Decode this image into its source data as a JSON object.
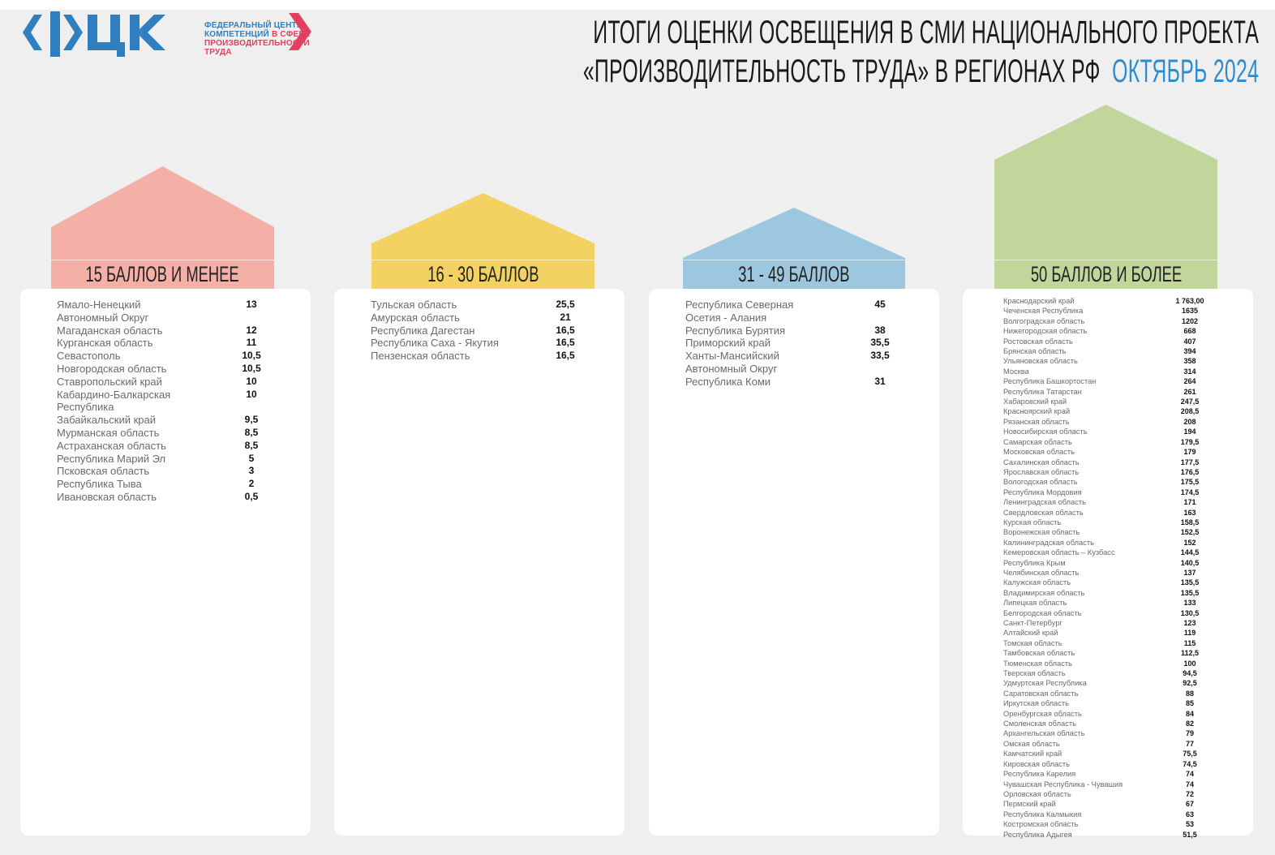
{
  "logo": {
    "mark": "ФЦК",
    "line1": "ФЕДЕРАЛЬНЫЙ ЦЕНТР",
    "line2a": "КОМПЕТЕНЦИЙ ",
    "line2b": "В СФЕРЕ",
    "line3": "ПРОИЗВОДИТЕЛЬНОСТИ",
    "line4": "ТРУДА",
    "colors": {
      "blue": "#2f7fc1",
      "red": "#e2405e"
    }
  },
  "title": {
    "line1": "ИТОГИ ОЦЕНКИ ОСВЕЩЕНИЯ В СМИ НАЦИОНАЛЬНОГО ПРОЕКТА",
    "line2": "«ПРОИЗВОДИТЕЛЬНОСТЬ ТРУДА» В РЕГИОНАХ РФ",
    "period": "ОКТЯБРЬ 2024"
  },
  "groups": [
    {
      "label": "15 БАЛЛОВ И МЕНЕЕ",
      "color": "#f4b0a6",
      "items": [
        [
          "Ямало-Ненецкий Автономный Округ",
          "13"
        ],
        [
          "Магаданская область",
          "12"
        ],
        [
          "Курганская область",
          "11"
        ],
        [
          "Севастополь",
          "10,5"
        ],
        [
          "Новгородская область",
          "10,5"
        ],
        [
          "Ставропольский край",
          "10"
        ],
        [
          "Кабардино-Балкарская Республика",
          "10"
        ],
        [
          "Забайкальский край",
          "9,5"
        ],
        [
          "Мурманская область",
          "8,5"
        ],
        [
          "Астраханская область",
          "8,5"
        ],
        [
          "Республика Марий Эл",
          "5"
        ],
        [
          "Псковская область",
          "3"
        ],
        [
          "Республика Тыва",
          "2"
        ],
        [
          "Ивановская область",
          "0,5"
        ]
      ]
    },
    {
      "label": "16 - 30 БАЛЛОВ",
      "color": "#f4d262",
      "items": [
        [
          "Тульская область",
          "25,5"
        ],
        [
          "Амурская область",
          "21"
        ],
        [
          "Республика Дагестан",
          "16,5"
        ],
        [
          "Республика Саха - Якутия",
          "16,5"
        ],
        [
          "Пензенская область",
          "16,5"
        ]
      ]
    },
    {
      "label": "31 - 49 БАЛЛОВ",
      "color": "#9dc7df",
      "items": [
        [
          "Республика Северная Осетия - Алания",
          "45"
        ],
        [
          "Республика Бурятия",
          "38"
        ],
        [
          "Приморский край",
          "35,5"
        ],
        [
          "Ханты-Мансийский Автономный Округ",
          "33,5"
        ],
        [
          "Республика Коми",
          "31"
        ]
      ]
    },
    {
      "label": "50 БАЛЛОВ И БОЛЕЕ",
      "color": "#c2d69b",
      "items": [
        [
          "Краснодарский край",
          "1 763,00"
        ],
        [
          "Чеченская Республика",
          "1635"
        ],
        [
          "Волгоградская область",
          "1202"
        ],
        [
          "Нижегородская область",
          "668"
        ],
        [
          "Ростовская область",
          "407"
        ],
        [
          "Брянская область",
          "394"
        ],
        [
          "Ульяновская область",
          "358"
        ],
        [
          "Москва",
          "314"
        ],
        [
          "Республика Башкортостан",
          "264"
        ],
        [
          "Республика Татарстан",
          "261"
        ],
        [
          "Хабаровский край",
          "247,5"
        ],
        [
          "Красноярский край",
          "208,5"
        ],
        [
          "Рязанская область",
          "208"
        ],
        [
          "Новосибирская область",
          "194"
        ],
        [
          "Самарская область",
          "179,5"
        ],
        [
          "Московская область",
          "179"
        ],
        [
          "Сахалинская область",
          "177,5"
        ],
        [
          "Ярославская область",
          "176,5"
        ],
        [
          "Вологодская область",
          "175,5"
        ],
        [
          "Республика Мордовия",
          "174,5"
        ],
        [
          "Ленинградская область",
          "171"
        ],
        [
          "Свердловская область",
          "163"
        ],
        [
          "Курская область",
          "158,5"
        ],
        [
          "Воронежская область",
          "152,5"
        ],
        [
          "Калининградская область",
          "152"
        ],
        [
          "Кемеровская область – Кузбасс",
          "144,5"
        ],
        [
          "Республика Крым",
          "140,5"
        ],
        [
          "Челябинская область",
          "137"
        ],
        [
          "Калужская область",
          "135,5"
        ],
        [
          "Владимирская область",
          "135,5"
        ],
        [
          "Липецкая область",
          "133"
        ],
        [
          "Белгородская область",
          "130,5"
        ],
        [
          "Санкт-Петербург",
          "123"
        ],
        [
          "Алтайский край",
          "119"
        ],
        [
          "Томская область",
          "115"
        ],
        [
          "Тамбовская область",
          "112,5"
        ],
        [
          "Тюменская область",
          "100"
        ],
        [
          "Тверская область",
          "94,5"
        ],
        [
          "Удмуртская Республика",
          "92,5"
        ],
        [
          "Саратовская область",
          "88"
        ],
        [
          "Иркутская область",
          "85"
        ],
        [
          "Оренбургская область",
          "84"
        ],
        [
          "Смоленская область",
          "82"
        ],
        [
          "Архангельская область",
          "79"
        ],
        [
          "Омская область",
          "77"
        ],
        [
          "Камчатский край",
          "75,5"
        ],
        [
          "Кировская область",
          "74,5"
        ],
        [
          "Республика Карелия",
          "74"
        ],
        [
          "Чувашская Республика - Чувашия",
          "74"
        ],
        [
          "Орловская область",
          "72"
        ],
        [
          "Пермский край",
          "67"
        ],
        [
          "Республика Калмыкия",
          "63"
        ],
        [
          "Костромская область",
          "53"
        ],
        [
          "Республика Адыгея",
          "51,5"
        ]
      ]
    }
  ]
}
